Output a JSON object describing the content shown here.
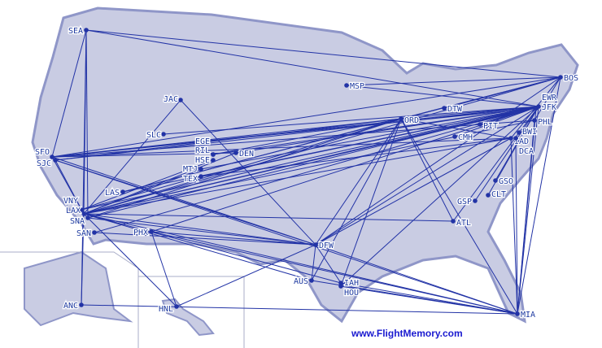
{
  "credit": "www.FlightMemory.com",
  "colors": {
    "land": "#c9cce3",
    "route": "#2233a6",
    "border": "#a9adc8",
    "shadow": "#8f96c8"
  },
  "airports": [
    "SEA",
    "JAC",
    "SLC",
    "MSP",
    "DTW",
    "ORD",
    "PIT",
    "CMH",
    "BOS",
    "JFK",
    "EWR",
    "PHL",
    "BWI",
    "IAD",
    "DCA",
    "SFO",
    "SJC",
    "RIL",
    "EGE",
    "DEN",
    "HSE",
    "MTJ",
    "TEX",
    "LAS",
    "VNY",
    "LAX",
    "SNA",
    "SAN",
    "PHX",
    "DFW",
    "GSO",
    "CLT",
    "GSP",
    "ATL",
    "AUS",
    "IAH",
    "HOU",
    "MIA",
    "ANC",
    "HNL"
  ],
  "routes": [
    [
      "SEA",
      "SFO"
    ],
    [
      "SEA",
      "LAX"
    ],
    [
      "SEA",
      "BOS"
    ],
    [
      "SEA",
      "SNA"
    ],
    [
      "SEA",
      "JFK"
    ],
    [
      "SFO",
      "JFK"
    ],
    [
      "SFO",
      "BOS"
    ],
    [
      "SFO",
      "ORD"
    ],
    [
      "SFO",
      "IAD"
    ],
    [
      "SFO",
      "DFW"
    ],
    [
      "SFO",
      "LAX"
    ],
    [
      "SFO",
      "DEN"
    ],
    [
      "SFO",
      "EWR"
    ],
    [
      "SFO",
      "PHL"
    ],
    [
      "SJC",
      "JFK"
    ],
    [
      "SJC",
      "LAX"
    ],
    [
      "SJC",
      "DFW"
    ],
    [
      "SJC",
      "MIA"
    ],
    [
      "SJC",
      "ORD"
    ],
    [
      "LAX",
      "JFK"
    ],
    [
      "LAX",
      "BOS"
    ],
    [
      "LAX",
      "ORD"
    ],
    [
      "LAX",
      "DFW"
    ],
    [
      "LAX",
      "MIA"
    ],
    [
      "LAX",
      "IAD"
    ],
    [
      "LAX",
      "PHL"
    ],
    [
      "LAX",
      "EWR"
    ],
    [
      "LAX",
      "JAC"
    ],
    [
      "LAX",
      "DEN"
    ],
    [
      "LAX",
      "ATL"
    ],
    [
      "LAX",
      "HNL"
    ],
    [
      "LAX",
      "ANC"
    ],
    [
      "LAX",
      "IAH"
    ],
    [
      "LAX",
      "AUS"
    ],
    [
      "LAX",
      "MTJ"
    ],
    [
      "VNY",
      "TEX"
    ],
    [
      "VNY",
      "JFK"
    ],
    [
      "VNY",
      "HSE"
    ],
    [
      "SNA",
      "DFW"
    ],
    [
      "SNA",
      "JFK"
    ],
    [
      "SNA",
      "ORD"
    ],
    [
      "SAN",
      "JFK"
    ],
    [
      "SAN",
      "DFW"
    ],
    [
      "LAS",
      "JFK"
    ],
    [
      "LAS",
      "BOS"
    ],
    [
      "LAS",
      "ORD"
    ],
    [
      "PHX",
      "JFK"
    ],
    [
      "PHX",
      "MIA"
    ],
    [
      "PHX",
      "DFW"
    ],
    [
      "PHX",
      "HNL"
    ],
    [
      "DEN",
      "JFK"
    ],
    [
      "EGE",
      "JFK"
    ],
    [
      "MTJ",
      "JFK"
    ],
    [
      "TEX",
      "JFK"
    ],
    [
      "TEX",
      "IAD"
    ],
    [
      "RIL",
      "ORD"
    ],
    [
      "SLC",
      "JFK"
    ],
    [
      "JAC",
      "DFW"
    ],
    [
      "MSP",
      "JFK"
    ],
    [
      "ORD",
      "JFK"
    ],
    [
      "ORD",
      "BOS"
    ],
    [
      "ORD",
      "DFW"
    ],
    [
      "ORD",
      "MIA"
    ],
    [
      "ORD",
      "ATL"
    ],
    [
      "ORD",
      "AUS"
    ],
    [
      "ORD",
      "HOU"
    ],
    [
      "DTW",
      "BOS"
    ],
    [
      "DFW",
      "JFK"
    ],
    [
      "DFW",
      "BOS"
    ],
    [
      "DFW",
      "MIA"
    ],
    [
      "DFW",
      "IAD"
    ],
    [
      "DFW",
      "HNL"
    ],
    [
      "DFW",
      "AUS"
    ],
    [
      "DFW",
      "IAH"
    ],
    [
      "JFK",
      "MIA"
    ],
    [
      "JFK",
      "ATL"
    ],
    [
      "JFK",
      "GSO"
    ],
    [
      "JFK",
      "CLT"
    ],
    [
      "JFK",
      "GSP"
    ],
    [
      "JFK",
      "HOU"
    ],
    [
      "JFK",
      "PIT"
    ],
    [
      "JFK",
      "CMH"
    ],
    [
      "BOS",
      "MIA"
    ],
    [
      "BOS",
      "IAD"
    ],
    [
      "BOS",
      "PHL"
    ],
    [
      "BOS",
      "ORD"
    ],
    [
      "BOS",
      "MSP"
    ],
    [
      "PHL",
      "MIA"
    ],
    [
      "IAD",
      "MIA"
    ],
    [
      "IAD",
      "ORD"
    ],
    [
      "DCA",
      "MIA"
    ],
    [
      "EWR",
      "MIA"
    ],
    [
      "IAH",
      "MIA"
    ],
    [
      "AUS",
      "MIA"
    ],
    [
      "HOU",
      "MIA"
    ],
    [
      "ANC",
      "SEA"
    ],
    [
      "ANC",
      "MIA"
    ]
  ]
}
